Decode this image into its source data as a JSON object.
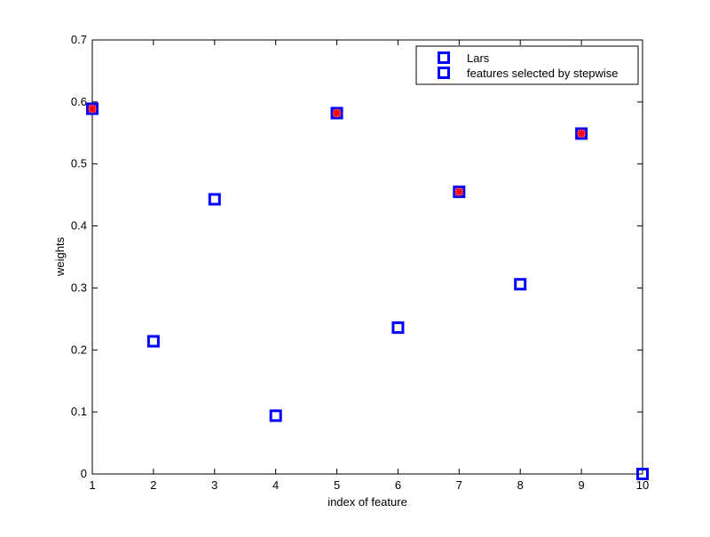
{
  "chart_data": {
    "type": "scatter",
    "title": "",
    "xlabel": "index of feature",
    "ylabel": "weights",
    "xlim": [
      1,
      10
    ],
    "ylim": [
      0,
      0.7
    ],
    "xticks": [
      1,
      2,
      3,
      4,
      5,
      6,
      7,
      8,
      9,
      10
    ],
    "xtick_labels": [
      "1",
      "2",
      "3",
      "4",
      "5",
      "6",
      "7",
      "8",
      "9",
      "10"
    ],
    "yticks": [
      0,
      0.1,
      0.2,
      0.3,
      0.4,
      0.5,
      0.6,
      0.7
    ],
    "ytick_labels": [
      "0",
      "0.1",
      "0.2",
      "0.3",
      "0.4",
      "0.5",
      "0.6",
      "0.7"
    ],
    "grid": false,
    "legend_position": "top-right",
    "series": [
      {
        "name": "Lars",
        "marker": "square",
        "color": "#0000ff",
        "x": [
          1,
          2,
          3,
          4,
          5,
          6,
          7,
          8,
          9,
          10
        ],
        "y": [
          0.589,
          0.214,
          0.443,
          0.094,
          0.582,
          0.236,
          0.455,
          0.306,
          0.549,
          0.0
        ]
      },
      {
        "name": "features selected by stepwise",
        "legend_marker": "square",
        "marker": "asterisk",
        "color": "#ff0000",
        "legend_color": "#0000ff",
        "x": [
          1,
          5,
          7,
          9
        ],
        "y": [
          0.589,
          0.582,
          0.455,
          0.549
        ]
      }
    ]
  }
}
